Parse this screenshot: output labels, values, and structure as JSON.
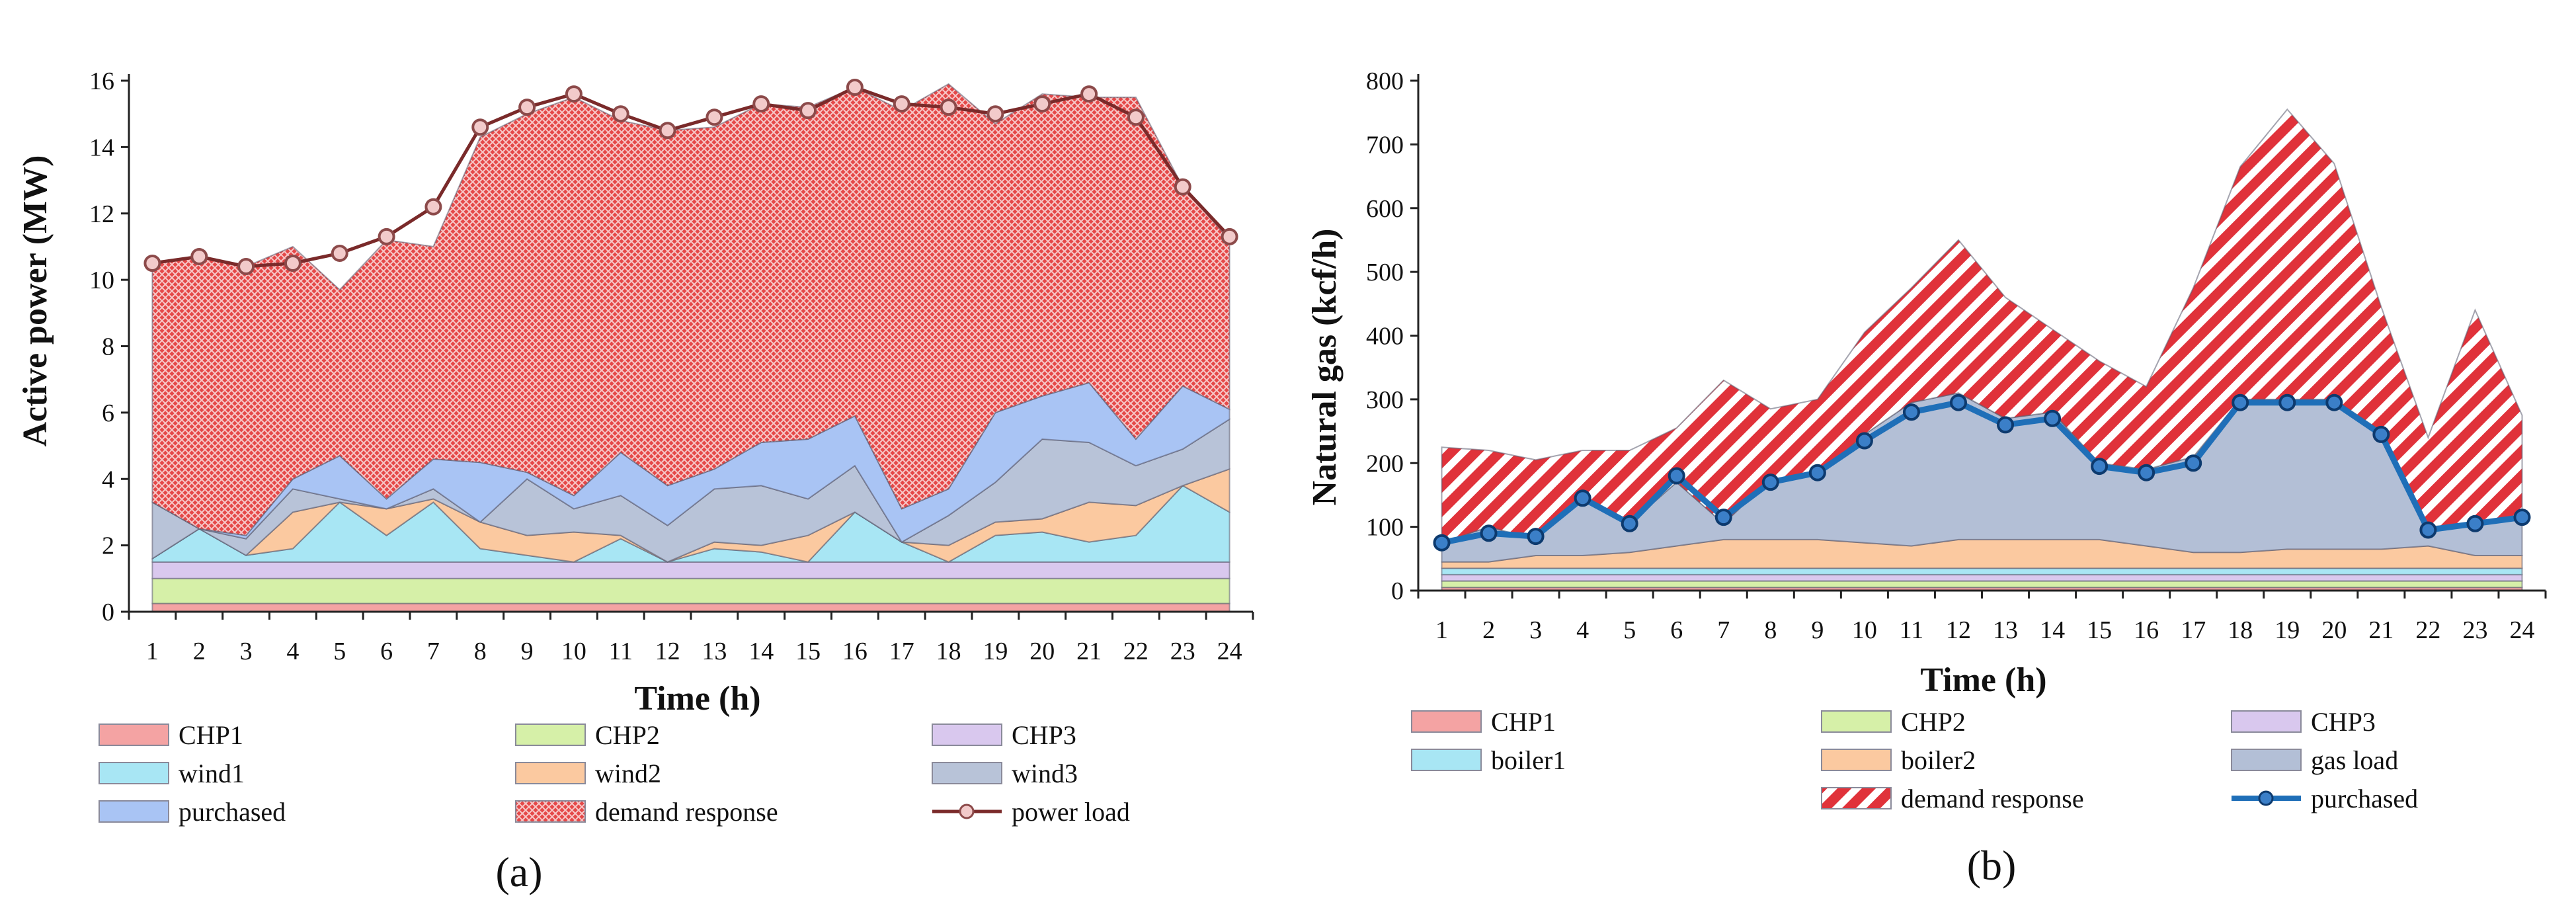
{
  "chart_data": [
    {
      "type": "area",
      "panel_label": "(a)",
      "xlabel": "Time (h)",
      "ylabel": "Active power (MW)",
      "ylim": [
        0,
        16
      ],
      "yticks": [
        "0",
        "2",
        "4",
        "6",
        "8",
        "10",
        "12",
        "14",
        "16"
      ],
      "x": [
        "1",
        "2",
        "3",
        "4",
        "5",
        "6",
        "7",
        "8",
        "9",
        "10",
        "11",
        "12",
        "13",
        "14",
        "15",
        "16",
        "17",
        "18",
        "19",
        "20",
        "21",
        "22",
        "23",
        "24"
      ],
      "stacked_series": [
        {
          "name": "CHP1",
          "color": "#f4a3a3",
          "values": [
            0.25,
            0.25,
            0.25,
            0.25,
            0.25,
            0.25,
            0.25,
            0.25,
            0.25,
            0.25,
            0.25,
            0.25,
            0.25,
            0.25,
            0.25,
            0.25,
            0.25,
            0.25,
            0.25,
            0.25,
            0.25,
            0.25,
            0.25,
            0.25
          ]
        },
        {
          "name": "CHP2",
          "color": "#d6f0a8",
          "values": [
            0.75,
            0.75,
            0.75,
            0.75,
            0.75,
            0.75,
            0.75,
            0.75,
            0.75,
            0.75,
            0.75,
            0.75,
            0.75,
            0.75,
            0.75,
            0.75,
            0.75,
            0.75,
            0.75,
            0.75,
            0.75,
            0.75,
            0.75,
            0.75
          ]
        },
        {
          "name": "CHP3",
          "color": "#d9c8ee",
          "values": [
            0.5,
            0.5,
            0.5,
            0.5,
            0.5,
            0.5,
            0.5,
            0.5,
            0.5,
            0.5,
            0.5,
            0.5,
            0.5,
            0.5,
            0.5,
            0.5,
            0.5,
            0.5,
            0.5,
            0.5,
            0.5,
            0.5,
            0.5,
            0.5
          ]
        },
        {
          "name": "wind1",
          "color": "#a8e6f4",
          "values": [
            0.1,
            1.0,
            0.2,
            0.4,
            1.8,
            0.8,
            1.8,
            0.4,
            0.2,
            0.0,
            0.7,
            0.0,
            0.4,
            0.3,
            0.0,
            1.5,
            0.6,
            0.0,
            0.8,
            0.9,
            0.6,
            0.8,
            2.3,
            1.5
          ]
        },
        {
          "name": "wind2",
          "color": "#fbc9a0",
          "values": [
            0.0,
            0.0,
            0.0,
            1.1,
            0.0,
            0.8,
            0.1,
            0.8,
            0.6,
            0.9,
            0.1,
            0.0,
            0.2,
            0.2,
            0.8,
            0.0,
            0.0,
            0.5,
            0.4,
            0.4,
            1.2,
            0.9,
            0.0,
            1.3
          ]
        },
        {
          "name": "wind3",
          "color": "#b8c3d8",
          "values": [
            1.7,
            0.0,
            0.5,
            0.7,
            0.1,
            0.0,
            0.3,
            0.0,
            1.7,
            0.7,
            1.2,
            1.1,
            1.6,
            1.8,
            1.1,
            1.4,
            0.0,
            0.9,
            1.2,
            2.4,
            1.8,
            1.2,
            1.1,
            1.5
          ]
        },
        {
          "name": "purchased",
          "color": "#a9c4f4",
          "values": [
            0.0,
            0.0,
            0.1,
            0.3,
            1.3,
            0.3,
            0.9,
            1.8,
            0.2,
            0.4,
            1.3,
            1.2,
            0.6,
            1.3,
            1.8,
            1.5,
            1.0,
            0.8,
            2.1,
            1.3,
            1.8,
            0.8,
            1.9,
            0.3
          ]
        },
        {
          "name": "demand response",
          "color": "#e84a4a",
          "values": [
            7.2,
            8.2,
            8.1,
            7.0,
            5.0,
            7.8,
            6.4,
            9.8,
            10.8,
            12.0,
            10.0,
            10.7,
            10.3,
            10.2,
            10.0,
            9.9,
            12.0,
            12.2,
            8.7,
            9.1,
            8.6,
            10.3,
            6.0,
            5.1
          ]
        }
      ],
      "line_series": [
        {
          "name": "power load",
          "color": "#7a2a2a",
          "values": [
            10.5,
            10.7,
            10.4,
            10.5,
            10.8,
            11.3,
            12.2,
            14.6,
            15.2,
            15.6,
            15.0,
            14.5,
            14.9,
            15.3,
            15.1,
            15.8,
            15.3,
            15.2,
            15.0,
            15.3,
            15.6,
            14.9,
            12.8,
            11.3
          ]
        }
      ],
      "legend": [
        "CHP1",
        "CHP2",
        "CHP3",
        "wind1",
        "wind2",
        "wind3",
        "purchased",
        "demand response",
        "power load"
      ]
    },
    {
      "type": "area",
      "panel_label": "(b)",
      "xlabel": "Time (h)",
      "ylabel": "Natural gas (kcf/h)",
      "ylim": [
        0,
        800
      ],
      "yticks": [
        "0",
        "100",
        "200",
        "300",
        "400",
        "500",
        "600",
        "700",
        "800"
      ],
      "x": [
        "1",
        "2",
        "3",
        "4",
        "5",
        "6",
        "7",
        "8",
        "9",
        "10",
        "11",
        "12",
        "13",
        "14",
        "15",
        "16",
        "17",
        "18",
        "19",
        "20",
        "21",
        "22",
        "23",
        "24"
      ],
      "stacked_series": [
        {
          "name": "CHP1",
          "color": "#f4a3a3",
          "values": [
            5,
            5,
            5,
            5,
            5,
            5,
            5,
            5,
            5,
            5,
            5,
            5,
            5,
            5,
            5,
            5,
            5,
            5,
            5,
            5,
            5,
            5,
            5,
            5
          ]
        },
        {
          "name": "CHP2",
          "color": "#d6f0a8",
          "values": [
            10,
            10,
            10,
            10,
            10,
            10,
            10,
            10,
            10,
            10,
            10,
            10,
            10,
            10,
            10,
            10,
            10,
            10,
            10,
            10,
            10,
            10,
            10,
            10
          ]
        },
        {
          "name": "CHP3",
          "color": "#d9c8ee",
          "values": [
            10,
            10,
            10,
            10,
            10,
            10,
            10,
            10,
            10,
            10,
            10,
            10,
            10,
            10,
            10,
            10,
            10,
            10,
            10,
            10,
            10,
            10,
            10,
            10
          ]
        },
        {
          "name": "boiler1",
          "color": "#a8e6f4",
          "values": [
            10,
            10,
            10,
            10,
            10,
            10,
            10,
            10,
            10,
            10,
            10,
            10,
            10,
            10,
            10,
            10,
            10,
            10,
            10,
            10,
            10,
            10,
            10,
            10
          ]
        },
        {
          "name": "boiler2",
          "color": "#fbc9a0",
          "values": [
            10,
            10,
            20,
            20,
            25,
            35,
            45,
            45,
            45,
            40,
            35,
            45,
            45,
            45,
            45,
            35,
            25,
            25,
            30,
            30,
            30,
            35,
            20,
            20
          ]
        },
        {
          "name": "gas load",
          "color": "#b3bfd6",
          "values": [
            30,
            55,
            25,
            90,
            45,
            100,
            25,
            95,
            100,
            170,
            225,
            230,
            190,
            200,
            120,
            120,
            150,
            240,
            235,
            235,
            185,
            30,
            50,
            60
          ]
        },
        {
          "name": "demand response",
          "color": "#e0323a",
          "values": [
            150,
            120,
            125,
            75,
            115,
            85,
            225,
            110,
            120,
            160,
            180,
            240,
            190,
            130,
            160,
            130,
            265,
            365,
            455,
            370,
            195,
            140,
            335,
            160
          ]
        }
      ],
      "line_series": [
        {
          "name": "purchased",
          "color": "#1f6fb8",
          "values": [
            75,
            90,
            85,
            145,
            105,
            180,
            115,
            170,
            185,
            235,
            280,
            295,
            260,
            270,
            195,
            185,
            200,
            295,
            295,
            295,
            245,
            95,
            105,
            115
          ]
        }
      ],
      "legend": [
        "CHP1",
        "CHP2",
        "CHP3",
        "boiler1",
        "boiler2",
        "gas load",
        "demand response",
        "purchased"
      ]
    }
  ]
}
